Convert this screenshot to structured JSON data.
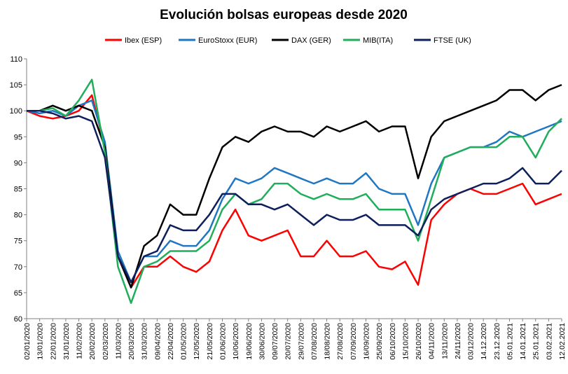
{
  "chart_data": {
    "type": "line",
    "title": "Evolución bolsas europeas desde 2020",
    "xlabel": "",
    "ylabel": "",
    "ylim": [
      60,
      110
    ],
    "yticks": [
      60,
      65,
      70,
      75,
      80,
      85,
      90,
      95,
      100,
      105,
      110
    ],
    "grid": false,
    "legend_position": "top",
    "x": [
      "02/01/2020",
      "13/01/2020",
      "22/01/2020",
      "31/01/2020",
      "11/02/2020",
      "20/02/2020",
      "02/03/2020",
      "11/03/2020",
      "20/03/2020",
      "31/03/2020",
      "09/04/2020",
      "22/04/2020",
      "01/05/2020",
      "12/05/2020",
      "21/05/2020",
      "01/06/2020",
      "10/06/2020",
      "19/06/2020",
      "30/06/2020",
      "09/07/2020",
      "20/07/2020",
      "29/07/2020",
      "07/08/2020",
      "18/08/2020",
      "27/08/2020",
      "07/09/2020",
      "16/09/2020",
      "25/09/2020",
      "06/10/2020",
      "15/10/2020",
      "26/10/2020",
      "04/11/2020",
      "13/11/2020",
      "24/11/2020",
      "03/12/2020",
      "14.12.2020",
      "23.12.2020",
      "05.01.2021",
      "14.01.2021",
      "25.01.2021",
      "03.02.2021",
      "12.02.2021"
    ],
    "series": [
      {
        "name": "Ibex (ESP)",
        "color": "#ff0000",
        "values": [
          100,
          99,
          98.5,
          99,
          100,
          103,
          93,
          72,
          66,
          70,
          70,
          72,
          70,
          69,
          71,
          77,
          81,
          76,
          75,
          76,
          77,
          72,
          72,
          75,
          72,
          72,
          73,
          70,
          69.5,
          71,
          66.5,
          79,
          82,
          84,
          85,
          84,
          84,
          85,
          86,
          82,
          83,
          84
        ]
      },
      {
        "name": "EuroStoxx (EUR)",
        "color": "#1f77c4",
        "values": [
          100,
          99.5,
          100,
          99,
          101,
          102,
          94,
          73,
          67,
          72,
          72,
          75,
          74,
          74,
          77,
          83,
          87,
          86,
          87,
          89,
          88,
          87,
          86,
          87,
          86,
          86,
          88,
          85,
          84,
          84,
          78,
          86,
          91,
          92,
          93,
          93,
          94,
          96,
          95,
          96,
          97,
          98
        ]
      },
      {
        "name": "DAX (GER)",
        "color": "#000000",
        "values": [
          100,
          100,
          101,
          100,
          101,
          100,
          93,
          72,
          66,
          74,
          76,
          82,
          80,
          80,
          87,
          93,
          95,
          94,
          96,
          97,
          96,
          96,
          95,
          97,
          96,
          97,
          98,
          96,
          97,
          97,
          87,
          95,
          98,
          99,
          100,
          101,
          102,
          104,
          104,
          102,
          104,
          105
        ]
      },
      {
        "name": "MIB(ITA)",
        "color": "#1fae5a",
        "values": [
          100,
          100,
          100.5,
          99,
          102,
          106,
          92,
          70,
          63,
          70,
          71,
          73,
          73,
          73,
          75,
          81,
          84,
          82,
          83,
          86,
          86,
          84,
          83,
          84,
          83,
          83,
          84,
          81,
          81,
          81,
          75,
          83,
          91,
          92,
          93,
          93,
          93,
          95,
          95,
          91,
          96,
          98.5
        ]
      },
      {
        "name": "FTSE (UK)",
        "color": "#0d1f5c",
        "values": [
          100,
          100,
          99.5,
          98.5,
          99,
          98,
          91,
          72,
          67,
          72,
          73,
          78,
          77,
          77,
          80,
          84,
          84,
          82,
          82,
          81,
          82,
          80,
          78,
          80,
          79,
          79,
          80,
          78,
          78,
          78,
          76,
          81,
          83,
          84,
          85,
          86,
          86,
          87,
          89,
          86,
          86,
          88.5
        ]
      }
    ]
  }
}
